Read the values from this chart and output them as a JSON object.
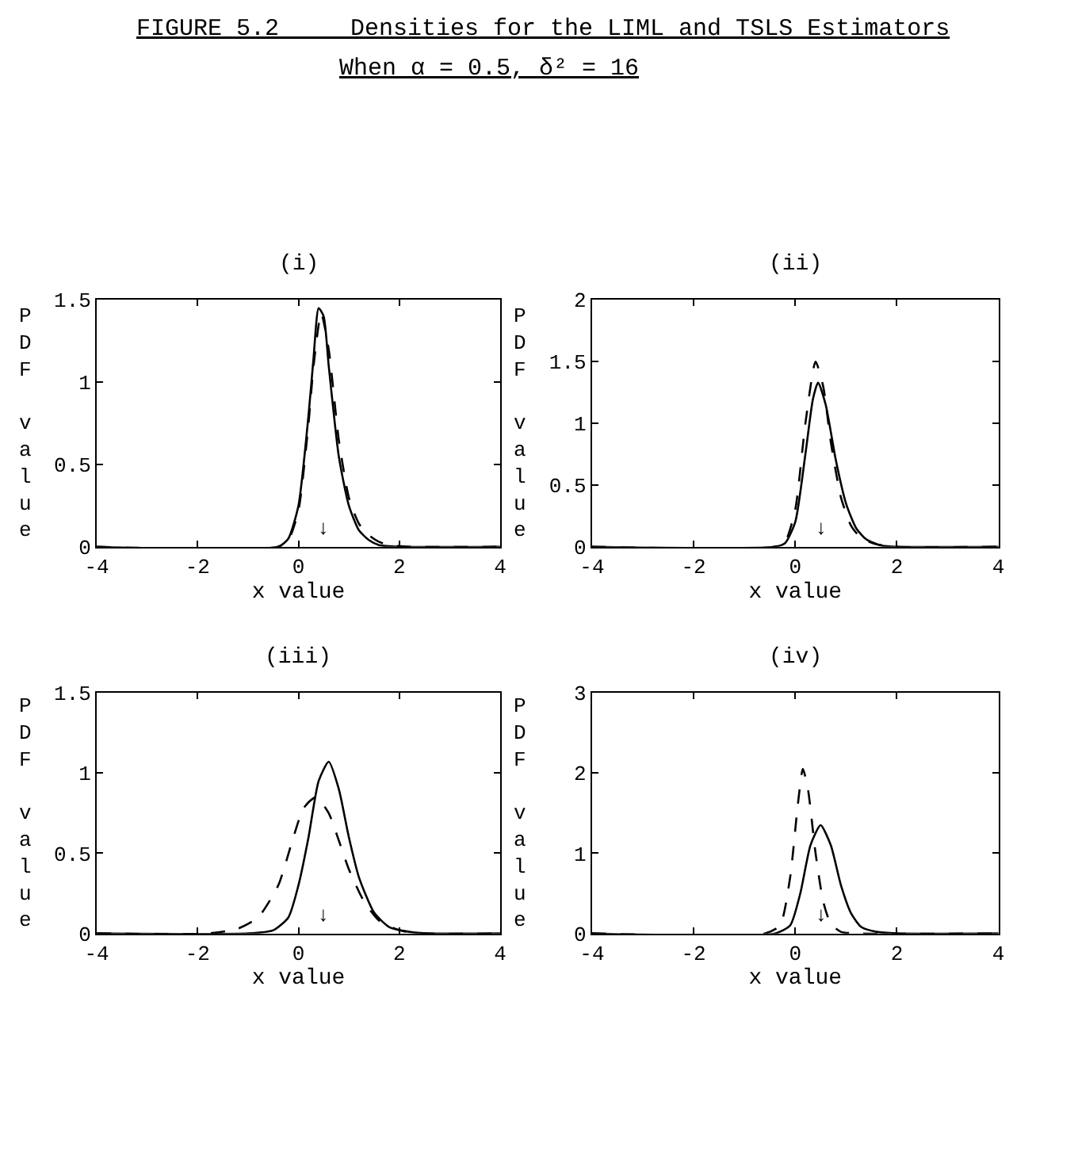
{
  "chart_data": [
    {
      "type": "other",
      "title": "FIGURE 5.2     Densities for the LIML and TSLS Estimators",
      "subtitle": "When α = 0.5, δ² = 16"
    },
    {
      "type": "line",
      "title": "(i)",
      "xlabel": "x value",
      "ylabel": "PDF value",
      "xlim": [
        -4,
        4
      ],
      "xticks": [
        -4,
        -2,
        0,
        2,
        4
      ],
      "ylim": [
        0,
        1.5
      ],
      "yticks": [
        0,
        0.5,
        1,
        1.5
      ],
      "annotations": [
        "↓"
      ],
      "series": [
        {
          "color": "#000000",
          "line_style": "solid",
          "x": [
            -4,
            -0.4,
            -0.2,
            0,
            0.2,
            0.3,
            0.4,
            0.5,
            0.6,
            0.8,
            1.0,
            1.2,
            1.4,
            1.6,
            2,
            4
          ],
          "values": [
            0,
            0,
            0.05,
            0.25,
            0.8,
            1.15,
            1.45,
            1.4,
            1.1,
            0.55,
            0.25,
            0.1,
            0.04,
            0.01,
            0,
            0
          ]
        },
        {
          "color": "#000000",
          "line_style": "dashed",
          "x": [
            -4,
            -0.4,
            -0.2,
            0,
            0.2,
            0.3,
            0.45,
            0.6,
            0.8,
            1.0,
            1.2,
            1.4,
            1.6,
            1.8,
            2.2,
            4
          ],
          "values": [
            0,
            0,
            0.04,
            0.22,
            0.75,
            1.1,
            1.42,
            1.2,
            0.65,
            0.3,
            0.14,
            0.07,
            0.03,
            0.01,
            0,
            0
          ]
        }
      ]
    },
    {
      "type": "line",
      "title": "(ii)",
      "xlabel": "x value",
      "ylabel": "PDF value",
      "xlim": [
        -4,
        4
      ],
      "xticks": [
        -4,
        -2,
        0,
        2,
        4
      ],
      "ylim": [
        0,
        2
      ],
      "yticks": [
        0,
        0.5,
        1,
        1.5,
        2
      ],
      "annotations": [
        "↓"
      ],
      "series": [
        {
          "color": "#000000",
          "line_style": "solid",
          "x": [
            -4,
            -0.4,
            -0.2,
            0,
            0.2,
            0.35,
            0.45,
            0.6,
            0.8,
            1.0,
            1.2,
            1.4,
            1.7,
            2,
            4
          ],
          "values": [
            0,
            0,
            0.03,
            0.2,
            0.75,
            1.2,
            1.33,
            1.15,
            0.7,
            0.35,
            0.15,
            0.06,
            0.01,
            0,
            0
          ]
        },
        {
          "color": "#000000",
          "line_style": "dashed",
          "x": [
            -4,
            -0.4,
            -0.2,
            0,
            0.2,
            0.4,
            0.55,
            0.7,
            0.9,
            1.1,
            1.3,
            1.6,
            2,
            4
          ],
          "values": [
            0,
            0,
            0.04,
            0.3,
            1.0,
            1.5,
            1.3,
            0.85,
            0.4,
            0.17,
            0.07,
            0.02,
            0,
            0
          ]
        }
      ]
    },
    {
      "type": "line",
      "title": "(iii)",
      "xlabel": "x value",
      "ylabel": "PDF value",
      "xlim": [
        -4,
        4
      ],
      "xticks": [
        -4,
        -2,
        0,
        2,
        4
      ],
      "ylim": [
        0,
        1.5
      ],
      "yticks": [
        0,
        0.5,
        1,
        1.5
      ],
      "annotations": [
        "↓"
      ],
      "series": [
        {
          "color": "#000000",
          "line_style": "solid",
          "x": [
            -4,
            -1,
            -0.5,
            -0.2,
            0,
            0.2,
            0.4,
            0.6,
            0.8,
            1.0,
            1.2,
            1.5,
            1.8,
            2.2,
            2.6,
            4
          ],
          "values": [
            0,
            0,
            0.02,
            0.1,
            0.3,
            0.6,
            0.95,
            1.07,
            0.9,
            0.6,
            0.35,
            0.13,
            0.04,
            0.01,
            0,
            0
          ]
        },
        {
          "color": "#000000",
          "line_style": "dashed",
          "x": [
            -4,
            -1.8,
            -1.2,
            -0.8,
            -0.4,
            -0.1,
            0.1,
            0.35,
            0.6,
            0.8,
            1.0,
            1.3,
            1.6,
            2.0,
            2.4,
            4
          ],
          "values": [
            0,
            0,
            0.03,
            0.1,
            0.3,
            0.6,
            0.78,
            0.85,
            0.75,
            0.58,
            0.4,
            0.2,
            0.08,
            0.02,
            0,
            0
          ]
        }
      ]
    },
    {
      "type": "line",
      "title": "(iv)",
      "xlabel": "x value",
      "ylabel": "PDF value",
      "xlim": [
        -4,
        4
      ],
      "xticks": [
        -4,
        -2,
        0,
        2,
        4
      ],
      "ylim": [
        0,
        3
      ],
      "yticks": [
        0,
        1,
        2,
        3
      ],
      "annotations": [
        "↓"
      ],
      "series": [
        {
          "color": "#000000",
          "line_style": "solid",
          "x": [
            -4,
            -0.4,
            -0.1,
            0.1,
            0.3,
            0.5,
            0.7,
            0.9,
            1.1,
            1.3,
            1.6,
            2,
            4
          ],
          "values": [
            0,
            0,
            0.1,
            0.5,
            1.1,
            1.35,
            1.1,
            0.6,
            0.25,
            0.08,
            0.02,
            0,
            0
          ]
        },
        {
          "color": "#000000",
          "line_style": "dashed",
          "x": [
            -4,
            -0.6,
            -0.3,
            -0.1,
            0.05,
            0.15,
            0.25,
            0.4,
            0.55,
            0.7,
            0.9,
            1.2,
            4
          ],
          "values": [
            0,
            0,
            0.1,
            0.7,
            1.6,
            2.05,
            1.8,
            1.0,
            0.4,
            0.12,
            0.02,
            0,
            0
          ]
        }
      ]
    }
  ]
}
